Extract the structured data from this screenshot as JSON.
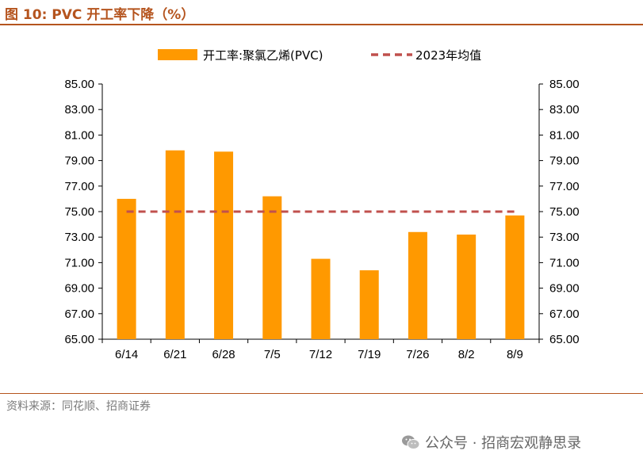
{
  "header": {
    "title": "图 10:  PVC 开工率下降（%）"
  },
  "footer": {
    "source": "资料来源：同花顺、招商证券",
    "watermark": "公众号 · 招商宏观静思录"
  },
  "colors": {
    "bar": "#ff9900",
    "avg_line": "#c0504d",
    "accent": "#b5541e",
    "axis": "#000000"
  },
  "chart_data": {
    "type": "bar",
    "title": "PVC 开工率下降（%）",
    "categories": [
      "6/14",
      "6/21",
      "6/28",
      "7/5",
      "7/12",
      "7/19",
      "7/26",
      "8/2",
      "8/9"
    ],
    "series": [
      {
        "name": "开工率:聚氯乙烯(PVC)",
        "type": "bar",
        "values": [
          76.0,
          79.8,
          79.7,
          76.2,
          71.3,
          70.4,
          73.4,
          73.2,
          74.7
        ]
      },
      {
        "name": "2023年均值",
        "type": "line",
        "style": "dashed",
        "values": [
          75.0,
          75.0,
          75.0,
          75.0,
          75.0,
          75.0,
          75.0,
          75.0,
          75.0
        ]
      }
    ],
    "y_ticks": [
      "65.00",
      "67.00",
      "69.00",
      "71.00",
      "73.00",
      "75.00",
      "77.00",
      "79.00",
      "81.00",
      "83.00",
      "85.00"
    ],
    "ylim": [
      65,
      85
    ],
    "y2lim": [
      65,
      85
    ],
    "xlabel": "",
    "ylabel": "",
    "grid": false,
    "legend_position": "top"
  }
}
